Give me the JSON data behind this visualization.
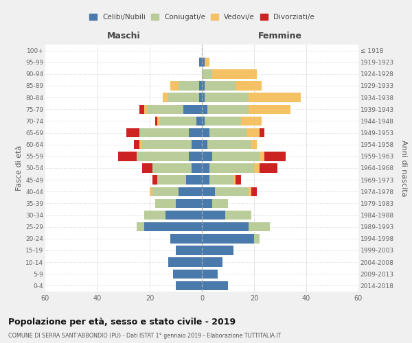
{
  "age_groups": [
    "0-4",
    "5-9",
    "10-14",
    "15-19",
    "20-24",
    "25-29",
    "30-34",
    "35-39",
    "40-44",
    "45-49",
    "50-54",
    "55-59",
    "60-64",
    "65-69",
    "70-74",
    "75-79",
    "80-84",
    "85-89",
    "90-94",
    "95-99",
    "100+"
  ],
  "birth_years": [
    "2014-2018",
    "2009-2013",
    "2004-2008",
    "1999-2003",
    "1994-1998",
    "1989-1993",
    "1984-1988",
    "1979-1983",
    "1974-1978",
    "1969-1973",
    "1964-1968",
    "1959-1963",
    "1954-1958",
    "1949-1953",
    "1944-1948",
    "1939-1943",
    "1934-1938",
    "1929-1933",
    "1924-1928",
    "1919-1923",
    "≤ 1918"
  ],
  "maschi_celibi": [
    10,
    11,
    13,
    10,
    12,
    22,
    14,
    10,
    9,
    6,
    4,
    5,
    4,
    5,
    2,
    7,
    1,
    1,
    0,
    1,
    0
  ],
  "maschi_coniugati": [
    0,
    0,
    0,
    0,
    0,
    3,
    8,
    8,
    10,
    11,
    15,
    20,
    19,
    19,
    14,
    14,
    12,
    8,
    0,
    0,
    0
  ],
  "maschi_vedovi": [
    0,
    0,
    0,
    0,
    0,
    0,
    0,
    0,
    1,
    0,
    0,
    0,
    1,
    0,
    1,
    1,
    2,
    3,
    0,
    0,
    0
  ],
  "maschi_divorziati": [
    0,
    0,
    0,
    0,
    0,
    0,
    0,
    0,
    0,
    2,
    4,
    7,
    2,
    5,
    1,
    2,
    0,
    0,
    0,
    0,
    0
  ],
  "femmine_celibi": [
    10,
    6,
    8,
    12,
    20,
    18,
    9,
    4,
    5,
    3,
    3,
    4,
    2,
    3,
    1,
    2,
    1,
    1,
    0,
    1,
    0
  ],
  "femmine_coniugati": [
    0,
    0,
    0,
    0,
    2,
    8,
    10,
    6,
    13,
    9,
    17,
    18,
    17,
    14,
    14,
    16,
    17,
    12,
    4,
    0,
    0
  ],
  "femmine_vedovi": [
    0,
    0,
    0,
    0,
    0,
    0,
    0,
    0,
    1,
    1,
    2,
    2,
    2,
    5,
    8,
    16,
    20,
    10,
    17,
    2,
    0
  ],
  "femmine_divorziati": [
    0,
    0,
    0,
    0,
    0,
    0,
    0,
    0,
    2,
    2,
    7,
    8,
    0,
    2,
    0,
    0,
    0,
    0,
    0,
    0,
    0
  ],
  "color_celibi": "#4a7aab",
  "color_coniugati": "#b9cc99",
  "color_vedovi": "#f5c165",
  "color_divorziati": "#cc2222",
  "title": "Popolazione per età, sesso e stato civile - 2019",
  "subtitle": "COMUNE DI SERRA SANT'ABBONDIO (PU) - Dati ISTAT 1° gennaio 2019 - Elaborazione TUTTITALIA.IT",
  "xlabel_left": "Maschi",
  "xlabel_right": "Femmine",
  "ylabel_left": "Fasce di età",
  "ylabel_right": "Anni di nascita",
  "xlim": 60,
  "legend_labels": [
    "Celibi/Nubili",
    "Coniugati/e",
    "Vedovi/e",
    "Divorziati/e"
  ],
  "bg_color": "#f0f0f0",
  "plot_bg_color": "#ffffff"
}
